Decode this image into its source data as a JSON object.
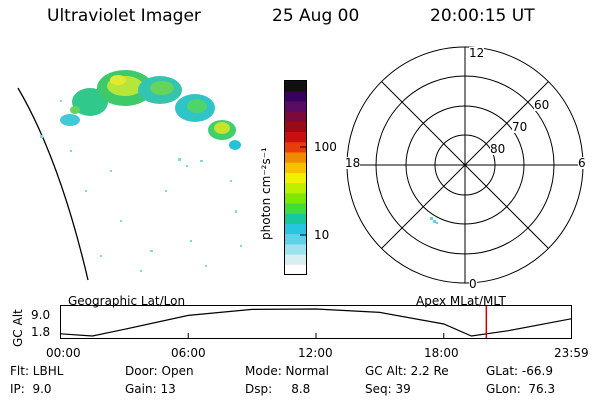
{
  "header": {
    "instrument": "Ultraviolet Imager",
    "date": "25 Aug 00",
    "time": "20:00:15 UT"
  },
  "colorbar": {
    "label": "photon cm⁻²s⁻¹",
    "ticks": [
      "100",
      "10"
    ],
    "colors": [
      "#101010",
      "#38005c",
      "#5a0b63",
      "#7a0a3c",
      "#9b0a12",
      "#c81010",
      "#e83c0a",
      "#f08a00",
      "#f5c200",
      "#f0f000",
      "#bdf000",
      "#7fe600",
      "#42dc3a",
      "#17c89a",
      "#26c5e0",
      "#5fd2e8",
      "#9ee2ef",
      "#d7eff3",
      "#ffffff"
    ]
  },
  "polar_plot": {
    "mlt_labels": {
      "top": "12",
      "left": "18",
      "right": "6",
      "bottom": "0"
    },
    "lat_labels": [
      "60",
      "70",
      "80"
    ]
  },
  "timeline": {
    "left_label": "Geographic Lat/Lon",
    "right_label": "Apex MLat/MLT",
    "axis_title": "GC Alt",
    "y_ticks": [
      "9.0",
      "1.8"
    ],
    "x_ticks": [
      "00:00",
      "06:00",
      "12:00",
      "18:00",
      "23:59"
    ]
  },
  "footer": {
    "row1": {
      "flt": "Flt: LBHL",
      "door": "Door: Open",
      "mode": "Mode: Normal",
      "gc_alt": "GC Alt: 2.2 Re",
      "glat": "GLat: -66.9"
    },
    "row2": {
      "ip": "IP:  9.0",
      "gain": "Gain: 13",
      "dsp": "Dsp:     8.8",
      "seq": "Seq: 39",
      "glon": "GLon:  76.3"
    }
  },
  "chart_data": {
    "type": "line",
    "title": "",
    "xlabel": "",
    "ylabel": "GC Alt",
    "x_tick_labels": [
      "00:00",
      "06:00",
      "12:00",
      "18:00",
      "23:59"
    ],
    "y_tick_labels": [
      "9.0",
      "1.8"
    ],
    "series": [
      {
        "x_hours": [
          0,
          1.5,
          3,
          6,
          9,
          12,
          15,
          18,
          19.3,
          21,
          23.98
        ],
        "y": [
          2.4,
          1.8,
          3.6,
          7.3,
          8.9,
          9.0,
          8.1,
          5.0,
          1.8,
          3.2,
          6.4
        ]
      }
    ],
    "current_time_hours": 20.0,
    "current_time_color": "#d40000"
  }
}
